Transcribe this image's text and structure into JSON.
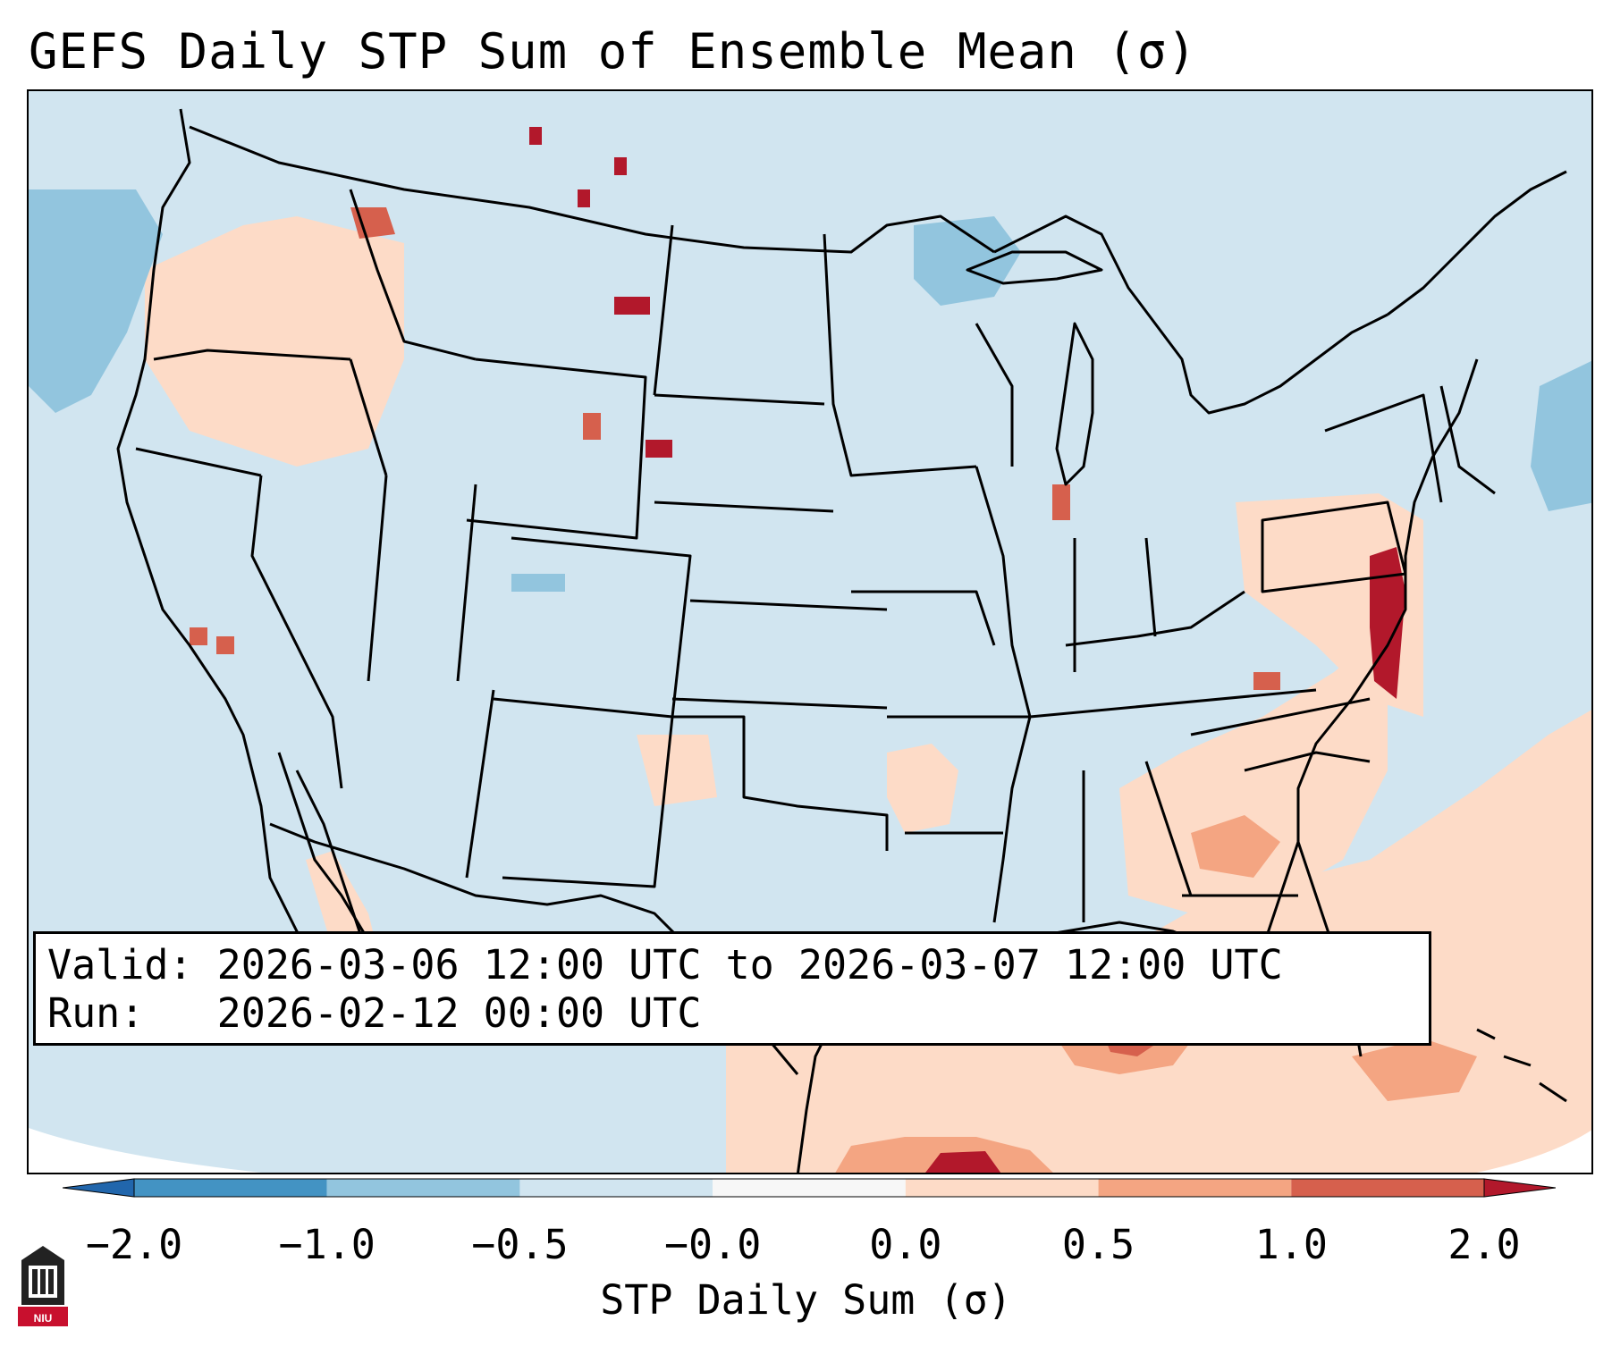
{
  "title": "GEFS Daily STP Sum of Ensemble Mean (σ)",
  "info": {
    "valid_line": "Valid: 2026-03-06 12:00 UTC to 2026-03-07 12:00 UTC",
    "run_line": "Run:   2026-02-12 00:00 UTC"
  },
  "colorbar": {
    "label": "STP Daily Sum (σ)",
    "ticks": [
      "−2.0",
      "−1.0",
      "−0.5",
      "−0.0",
      "0.0",
      "0.5",
      "1.0",
      "2.0"
    ],
    "colors": [
      "#4393c3",
      "#92c5de",
      "#d1e5f0",
      "#f7f7f7",
      "#fddbc7",
      "#f4a582",
      "#d6604d",
      "#b2182b"
    ],
    "extend_low_color": "#2166ac",
    "extend_high_color": "#b2182b"
  },
  "logo": {
    "text": "NIU",
    "color": "#c8102e"
  },
  "map": {
    "background_color": "#d1e5f0",
    "features": [
      "state-borders",
      "coastlines",
      "country-borders"
    ]
  }
}
